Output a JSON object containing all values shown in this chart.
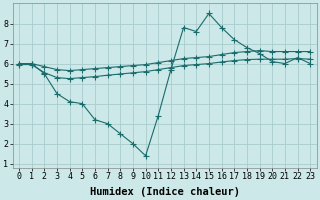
{
  "line1_x": [
    0,
    1,
    2,
    3,
    4,
    5,
    6,
    7,
    8,
    9,
    10,
    11,
    12,
    13,
    14,
    15,
    16,
    17,
    18,
    19,
    20,
    21,
    22,
    23
  ],
  "line1_y": [
    6.0,
    6.0,
    5.5,
    4.5,
    4.1,
    4.0,
    3.2,
    3.0,
    2.5,
    2.0,
    1.4,
    3.4,
    5.7,
    7.8,
    7.6,
    8.5,
    7.8,
    7.2,
    6.8,
    6.5,
    6.1,
    6.0,
    6.3,
    6.0
  ],
  "line2_x": [
    0,
    1,
    2,
    3,
    4,
    5,
    6,
    7,
    8,
    9,
    10,
    11,
    12,
    13,
    14,
    15,
    16,
    17,
    18,
    19,
    20,
    21,
    22,
    23
  ],
  "line2_y": [
    6.0,
    6.0,
    5.85,
    5.7,
    5.65,
    5.7,
    5.75,
    5.8,
    5.85,
    5.9,
    5.95,
    6.05,
    6.15,
    6.25,
    6.3,
    6.35,
    6.45,
    6.55,
    6.6,
    6.65,
    6.6,
    6.6,
    6.6,
    6.6
  ],
  "line3_x": [
    0,
    1,
    2,
    3,
    4,
    5,
    6,
    7,
    8,
    9,
    10,
    11,
    12,
    13,
    14,
    15,
    16,
    17,
    18,
    19,
    20,
    21,
    22,
    23
  ],
  "line3_y": [
    5.95,
    5.95,
    5.55,
    5.3,
    5.25,
    5.3,
    5.35,
    5.42,
    5.48,
    5.54,
    5.6,
    5.7,
    5.8,
    5.9,
    5.95,
    6.0,
    6.08,
    6.15,
    6.2,
    6.22,
    6.22,
    6.22,
    6.25,
    6.22
  ],
  "color": "#1a6b6b",
  "bg_color": "#cce8e8",
  "grid_color": "#aacccc",
  "xlabel": "Humidex (Indice chaleur)",
  "xlim_min": -0.5,
  "xlim_max": 23.5,
  "ylim_min": 0.8,
  "ylim_max": 9.0,
  "xticks": [
    0,
    1,
    2,
    3,
    4,
    5,
    6,
    7,
    8,
    9,
    10,
    11,
    12,
    13,
    14,
    15,
    16,
    17,
    18,
    19,
    20,
    21,
    22,
    23
  ],
  "yticks": [
    1,
    2,
    3,
    4,
    5,
    6,
    7,
    8
  ],
  "xlabel_fontsize": 7.5,
  "tick_fontsize": 6.0,
  "marker": "+",
  "markersize": 4.0,
  "linewidth": 0.8
}
